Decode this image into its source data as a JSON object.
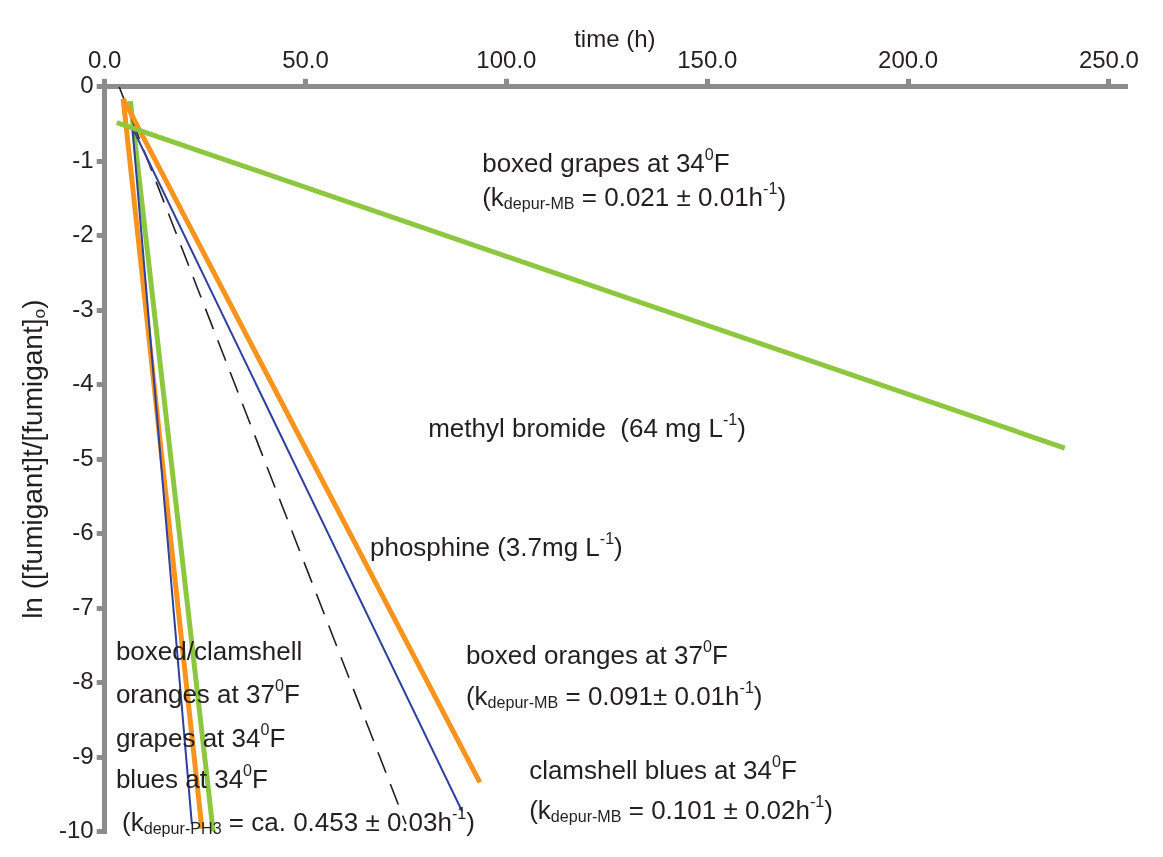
{
  "chart_data": {
    "type": "line",
    "xlabel": "time (h)",
    "ylabel": "ln ([fumigant]t/[fumigant]$_{o}$)",
    "xlim": [
      0,
      254
    ],
    "ylim": [
      -10,
      0
    ],
    "xticks": [
      {
        "value": 0,
        "label": "0.0"
      },
      {
        "value": 50,
        "label": "50.0"
      },
      {
        "value": 100,
        "label": "100.0"
      },
      {
        "value": 150,
        "label": "150.0"
      },
      {
        "value": 200,
        "label": "200.0"
      },
      {
        "value": 250,
        "label": "250.0"
      }
    ],
    "yticks": [
      0,
      -1,
      -2,
      -3,
      -4,
      -5,
      -6,
      -7,
      -8,
      -9,
      -10
    ],
    "grid": false,
    "legend": false,
    "marker": "none",
    "series": [
      {
        "color": "#8dc63f",
        "x": [
          3,
          239
        ],
        "values": [
          -0.48,
          -4.85
        ]
      },
      {
        "color": "#f7941d",
        "x": [
          4.6,
          93.4
        ],
        "values": [
          -0.16,
          -9.34
        ]
      },
      {
        "color": "#2e3f9e",
        "x": [
          6.9,
          89
        ],
        "values": [
          -0.55,
          -9.73
        ]
      },
      {
        "color": "#231f20",
        "line_style": "dashed",
        "x": [
          3.6,
          75
        ],
        "values": [
          0,
          -9.9
        ]
      },
      {
        "color": "#2e3f9e",
        "x": [
          6.9,
          21.7
        ],
        "values": [
          -0.55,
          -9.9
        ]
      },
      {
        "color": "#f7941d",
        "x": [
          4.6,
          24.2
        ],
        "values": [
          -0.16,
          -9.96
        ]
      },
      {
        "color": "#8dc63f",
        "x": [
          6.4,
          27
        ],
        "values": [
          -0.19,
          -10
        ]
      }
    ],
    "annotations": [
      "boxed grapes at 34$^{0}$F",
      "(k$_{depur-MB}$ = 0.021 ± 0.01h$^{-1}$)",
      "methyl bromide  (64 mg L$^{-1}$)",
      "phosphine (3.7mg L$^{-1}$)",
      "boxed oranges at 37$^{0}$F",
      "(k$_{depur-MB}$ = 0.091± 0.01h$^{-1}$)",
      "clamshell blues at 34$^{0}$F",
      "(k$_{depur-MB}$ = 0.101 ± 0.02h$^{-1}$)",
      "boxed/clamshell",
      "oranges at 37$^{0}$F",
      "grapes at 34$^{0}$F",
      "blues at 34$^{0}$F",
      "(k$_{depur-PH3}$ = ca. 0.453 ± 0.03h$^{-1}$)"
    ]
  }
}
